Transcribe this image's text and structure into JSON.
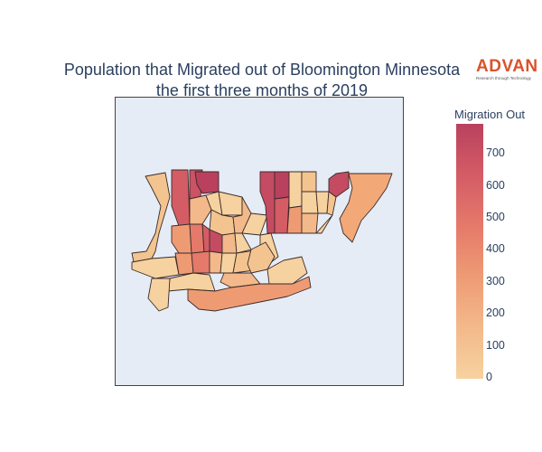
{
  "title": {
    "line1": "Population that Migrated out of Bloomington Minnesota",
    "line2": "the first three months of 2019"
  },
  "logo": {
    "brand": "ADVAN",
    "tagline": "Research through Technology"
  },
  "colorbar": {
    "title": "Migration Out",
    "ticks": [
      "700",
      "600",
      "500",
      "400",
      "300",
      "200",
      "100",
      "0"
    ],
    "range": [
      0,
      790
    ],
    "colors": [
      "#f6d2a0",
      "#f3b98a",
      "#ee9b74",
      "#e5796a",
      "#d45c65",
      "#b9415e"
    ]
  },
  "map": {
    "type": "choropleth",
    "region": "Bloomington Minnesota",
    "background": "#e5ecf6",
    "border_color": "#3b2a2a"
  }
}
